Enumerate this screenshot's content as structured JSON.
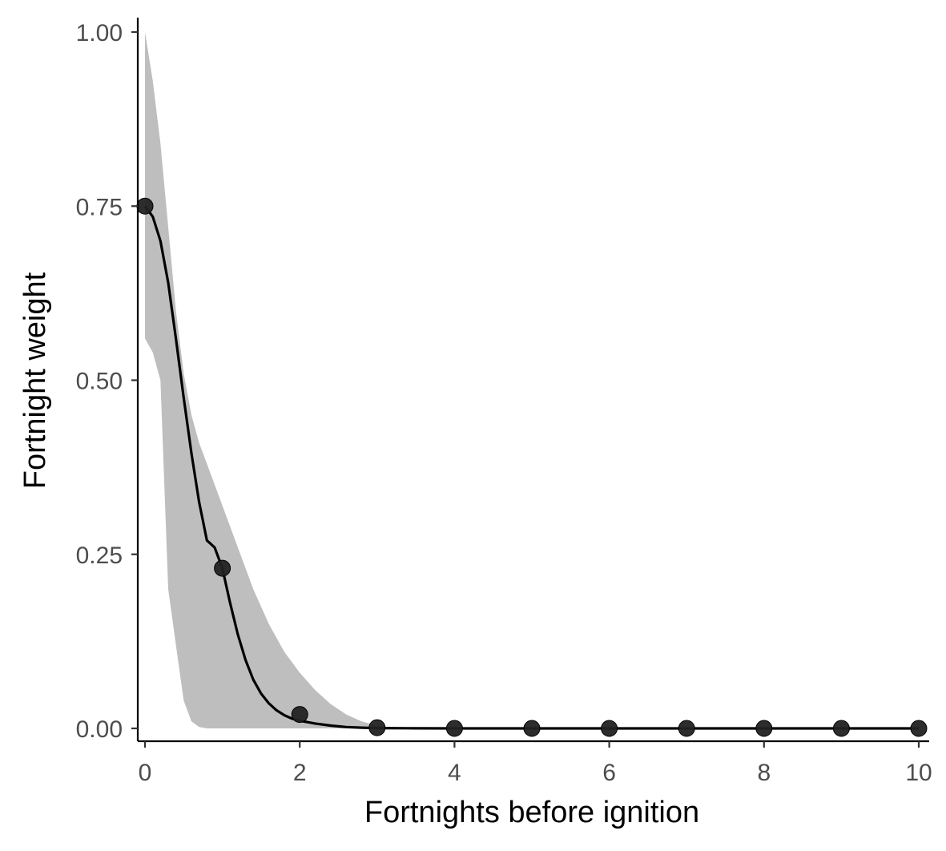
{
  "chart_data": {
    "type": "line",
    "title": "",
    "xlabel": "Fortnights before ignition",
    "ylabel": "Fortnight weight",
    "xlim": [
      -0.1,
      10.05
    ],
    "ylim": [
      -0.02,
      1.02
    ],
    "x_ticks": [
      0,
      2,
      4,
      6,
      8,
      10
    ],
    "x_tick_labels": [
      "0",
      "2",
      "4",
      "6",
      "8",
      "10"
    ],
    "y_ticks": [
      0,
      0.25,
      0.5,
      0.75,
      1.0
    ],
    "y_tick_labels": [
      "0.00",
      "0.25",
      "0.50",
      "0.75",
      "1.00"
    ],
    "grid": false,
    "legend": "none",
    "colors": {
      "ribbon": "#bebebe",
      "line": "#000000",
      "points": "#222222"
    },
    "points": {
      "x": [
        0,
        1,
        2,
        3,
        4,
        5,
        6,
        7,
        8,
        9,
        10
      ],
      "y": [
        0.75,
        0.23,
        0.02,
        0.001,
        0,
        0,
        0,
        0,
        0,
        0,
        0
      ]
    },
    "fitted_curve": {
      "x": [
        0,
        0.1,
        0.2,
        0.3,
        0.4,
        0.5,
        0.6,
        0.7,
        0.8,
        0.9,
        1.0,
        1.1,
        1.2,
        1.3,
        1.4,
        1.5,
        1.6,
        1.7,
        1.8,
        1.9,
        2.0,
        2.2,
        2.4,
        2.6,
        2.8,
        3.0,
        3.5,
        4,
        5,
        6,
        7,
        8,
        9,
        10
      ],
      "y": [
        0.75,
        0.735,
        0.7,
        0.64,
        0.56,
        0.475,
        0.395,
        0.325,
        0.27,
        0.26,
        0.23,
        0.18,
        0.135,
        0.098,
        0.07,
        0.05,
        0.036,
        0.026,
        0.019,
        0.014,
        0.011,
        0.007,
        0.004,
        0.002,
        0.001,
        0.0005,
        0.0001,
        0,
        0,
        0,
        0,
        0,
        0,
        0
      ]
    },
    "confidence_band": {
      "x": [
        0,
        0.1,
        0.2,
        0.3,
        0.4,
        0.5,
        0.6,
        0.7,
        0.8,
        1.0,
        1.2,
        1.4,
        1.6,
        1.8,
        2.0,
        2.2,
        2.4,
        2.6,
        2.8,
        3.0,
        3.2,
        4,
        10
      ],
      "lower": [
        0.56,
        0.54,
        0.5,
        0.2,
        0.12,
        0.04,
        0.01,
        0.002,
        0,
        0,
        0,
        0,
        0,
        0,
        0,
        0,
        0,
        0,
        0,
        0,
        0,
        0,
        0
      ],
      "upper": [
        1.0,
        0.93,
        0.84,
        0.72,
        0.6,
        0.51,
        0.45,
        0.41,
        0.38,
        0.32,
        0.26,
        0.2,
        0.15,
        0.11,
        0.08,
        0.055,
        0.035,
        0.02,
        0.01,
        0.004,
        0.001,
        0,
        0
      ]
    }
  }
}
